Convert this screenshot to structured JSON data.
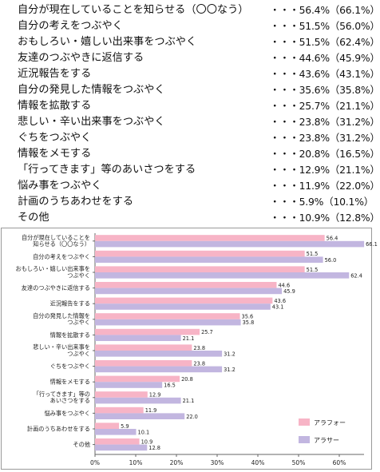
{
  "chart_data": {
    "type": "bar",
    "orientation": "horizontal",
    "categories": [
      "自分が現在していることを知らせる（〇〇なう）",
      "自分の考えをつぶやく",
      "おもしろい・嬉しい出来事をつぶやく",
      "友達のつぶやきに返信する",
      "近況報告をする",
      "自分の発見した情報をつぶやく",
      "情報を拡散する",
      "悲しい・辛い出来事をつぶやく",
      "ぐちをつぶやく",
      "情報をメモする",
      "「行ってきます」等のあいさつをする",
      "悩み事をつぶやく",
      "計画のうちあわせをする",
      "その他"
    ],
    "chart_labels": [
      [
        "自分が現在していることを",
        "知らせる（〇〇なう）"
      ],
      [
        "自分の考えをつぶやく"
      ],
      [
        "おもしろい・嬉しい出来事を",
        "つぶやく"
      ],
      [
        "友達のつぶやきに返信する"
      ],
      [
        "近況報告をする"
      ],
      [
        "自分の発見した情報を",
        "つぶやく"
      ],
      [
        "情報を拡散する"
      ],
      [
        "悲しい・辛い出来事を",
        "つぶやく"
      ],
      [
        "ぐちをつぶやく"
      ],
      [
        "情報をメモする"
      ],
      [
        "「行ってきます」等の",
        "あいさつをする"
      ],
      [
        "悩み事をつぶやく"
      ],
      [
        "計画のうちあわせをする"
      ],
      [
        "その他"
      ]
    ],
    "list_values": [
      "・・・56.4%（66.1%）",
      "・・・51.5%（56.0%）",
      "・・・51.5%（62.4%）",
      "・・・44.6%（45.9%）",
      "・・・43.6%（43.1%）",
      "・・・35.6%（35.8%）",
      "・・・25.7%（21.1%）",
      "・・・23.8%（31.2%）",
      "・・・23.8%（31.2%）",
      "・・・20.8%（16.5%）",
      "・・・12.9%（21.1%）",
      "・・・11.9%（22.0%）",
      "・・・5.9%（10.1%）",
      "・・・10.9%（12.8%）"
    ],
    "series": [
      {
        "name": "アラフォー",
        "color": "#f7b4c6",
        "values": [
          56.4,
          51.5,
          51.5,
          44.6,
          43.6,
          35.6,
          25.7,
          23.8,
          23.8,
          20.8,
          12.9,
          11.9,
          5.9,
          10.9
        ],
        "value_labels": [
          "56.4",
          "51.5",
          "51.5",
          "44.6",
          "43.6",
          "35.6",
          "25.7",
          "23.8",
          "23.8",
          "20.8",
          "12.9",
          "11.9",
          "5.9",
          "10.9"
        ]
      },
      {
        "name": "アラサー",
        "color": "#c2b6e0",
        "values": [
          66.1,
          56.0,
          62.4,
          45.9,
          43.1,
          35.8,
          21.1,
          31.2,
          31.2,
          16.5,
          21.1,
          22.0,
          10.1,
          12.8
        ],
        "value_labels": [
          "66.1",
          "56.0",
          "62.4",
          "45.9",
          "43.1",
          "35.8",
          "21.1",
          "31.2",
          "31.2",
          "16.5",
          "21.1",
          "22.0",
          "10.1",
          "12.8"
        ]
      }
    ],
    "xlim": [
      0,
      70
    ],
    "xticks": [
      0,
      10,
      20,
      30,
      40,
      50,
      60
    ],
    "xtick_labels": [
      "0%",
      "10%",
      "20%",
      "30%",
      "40%",
      "50%",
      "60%"
    ],
    "grid": false,
    "legend": "bottom-right"
  }
}
